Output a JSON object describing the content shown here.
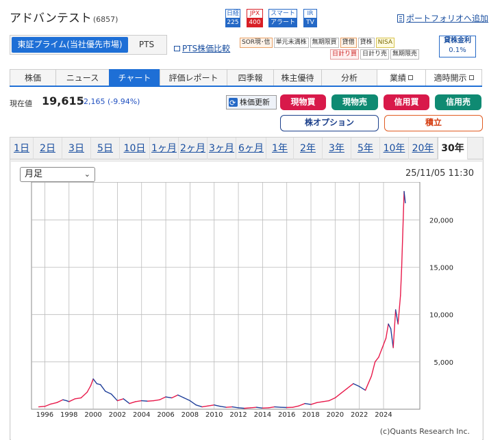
{
  "stock": {
    "name": "アドバンテスト",
    "code": "(6857)"
  },
  "index_badges": [
    {
      "top": "日経",
      "bottom": "225",
      "color": "#2468c6"
    },
    {
      "top": "JPX",
      "bottom": "400",
      "color": "#d81f26"
    },
    {
      "top": "スマート",
      "bottom": "アラート",
      "color": "#2468c6"
    },
    {
      "top": "IR",
      "bottom": "TV",
      "color": "#2468c6"
    }
  ],
  "portfolio_link": "ポートフォリオへ追加",
  "market": {
    "active": "東証プライム(当社優先市場)",
    "pts": "PTS"
  },
  "pts_compare": "PTS株価比較",
  "tags_row1": [
    {
      "label": "SOR現･信",
      "style": "orange"
    },
    {
      "label": "単元未満株",
      "style": "plain"
    },
    {
      "label": "無期限買",
      "style": "plain"
    },
    {
      "label": "貸借",
      "style": "orange"
    },
    {
      "label": "貸株",
      "style": "plain"
    },
    {
      "label": "NISA",
      "style": "yellow"
    }
  ],
  "tags_row2": [
    {
      "label": "日計り買",
      "style": "red"
    },
    {
      "label": "日計り売",
      "style": "plain"
    },
    {
      "label": "無期限売",
      "style": "plain"
    }
  ],
  "margin_rate": {
    "label": "貸株金利",
    "value": "0.1%"
  },
  "tabs": [
    {
      "label": "株価",
      "ext": false
    },
    {
      "label": "ニュース",
      "ext": false
    },
    {
      "label": "チャート",
      "ext": false,
      "active": true
    },
    {
      "label": "評価レポート",
      "ext": false
    },
    {
      "label": "四季報",
      "ext": false
    },
    {
      "label": "株主優待",
      "ext": false
    },
    {
      "label": "分析",
      "ext": false
    },
    {
      "label": "業績",
      "ext": true
    },
    {
      "label": "適時開示",
      "ext": true
    }
  ],
  "price": {
    "label": "現在値",
    "value": "19,615",
    "change": "-2,165 (-9.94%)"
  },
  "refresh_label": "株価更新",
  "trade_buttons": [
    {
      "label": "現物買",
      "style": "red"
    },
    {
      "label": "現物売",
      "style": "green"
    },
    {
      "label": "信用買",
      "style": "red"
    },
    {
      "label": "信用売",
      "style": "green"
    }
  ],
  "option_button": "株オプション",
  "tsumitate_button": "積立",
  "periods": [
    "1日",
    "2日",
    "3日",
    "5日",
    "10日",
    "1ヶ月",
    "2ヶ月",
    "3ヶ月",
    "6ヶ月",
    "1年",
    "2年",
    "3年",
    "5年",
    "10年",
    "20年",
    "30年"
  ],
  "active_period": "30年",
  "chart_select": "月足",
  "timestamp": "25/11/05 11:30",
  "credit": "(c)Quants Research Inc.",
  "colors": {
    "up": "#e8194a",
    "down": "#1f3f9a",
    "accent": "#1e6fd6"
  },
  "chart_data": {
    "type": "line",
    "title": "",
    "xlabel": "",
    "ylabel": "",
    "x_ticks": [
      "1996",
      "1998",
      "2000",
      "2002",
      "2004",
      "2006",
      "2008",
      "2010",
      "2012",
      "2014",
      "2016",
      "2018",
      "2020",
      "2022",
      "2024"
    ],
    "y_ticks": [
      "5,000",
      "10,000",
      "15,000",
      "20,000"
    ],
    "ylim": [
      0,
      24000
    ],
    "xlim": [
      1994.9,
      2027.0
    ],
    "grid": true,
    "series": [
      {
        "x": [
          1995.5,
          1996.0,
          1996.5,
          1997.0,
          1997.5,
          1997.8,
          1998.0,
          1998.5,
          1999.0,
          1999.5,
          1999.8,
          2000.0,
          2000.3,
          2000.6,
          2001.0,
          2001.5,
          2002.0,
          2002.5,
          2003.0,
          2003.5,
          2004.0,
          2004.5,
          2005.0,
          2005.5,
          2006.0,
          2006.5,
          2007.0,
          2007.5,
          2008.0,
          2008.5,
          2009.0,
          2009.5,
          2010.0,
          2010.5,
          2011.0,
          2011.5,
          2012.0,
          2012.5,
          2013.0,
          2013.5,
          2014.0,
          2014.5,
          2015.0,
          2015.5,
          2016.0,
          2016.5,
          2017.0,
          2017.5,
          2018.0,
          2018.5,
          2019.0,
          2019.5,
          2020.0,
          2020.5,
          2021.0,
          2021.5,
          2022.0,
          2022.5,
          2023.0,
          2023.3,
          2023.6,
          2023.9,
          2024.2,
          2024.4,
          2024.6,
          2024.8,
          2025.0,
          2025.2,
          2025.4,
          2025.5,
          2025.6,
          2025.7,
          2025.8
        ],
        "values": [
          250,
          300,
          550,
          700,
          1000,
          900,
          800,
          1100,
          1200,
          1800,
          2500,
          3200,
          2700,
          2600,
          1900,
          1600,
          900,
          1100,
          600,
          800,
          900,
          850,
          900,
          1000,
          1300,
          1200,
          1500,
          1200,
          900,
          450,
          250,
          350,
          450,
          300,
          200,
          250,
          150,
          100,
          150,
          200,
          120,
          150,
          250,
          200,
          180,
          200,
          350,
          600,
          500,
          700,
          800,
          900,
          1200,
          1700,
          2200,
          2700,
          2400,
          2000,
          3500,
          5000,
          5500,
          6500,
          7500,
          9000,
          8500,
          6500,
          10500,
          9000,
          12000,
          15000,
          19000,
          23000,
          21800
        ]
      }
    ]
  }
}
